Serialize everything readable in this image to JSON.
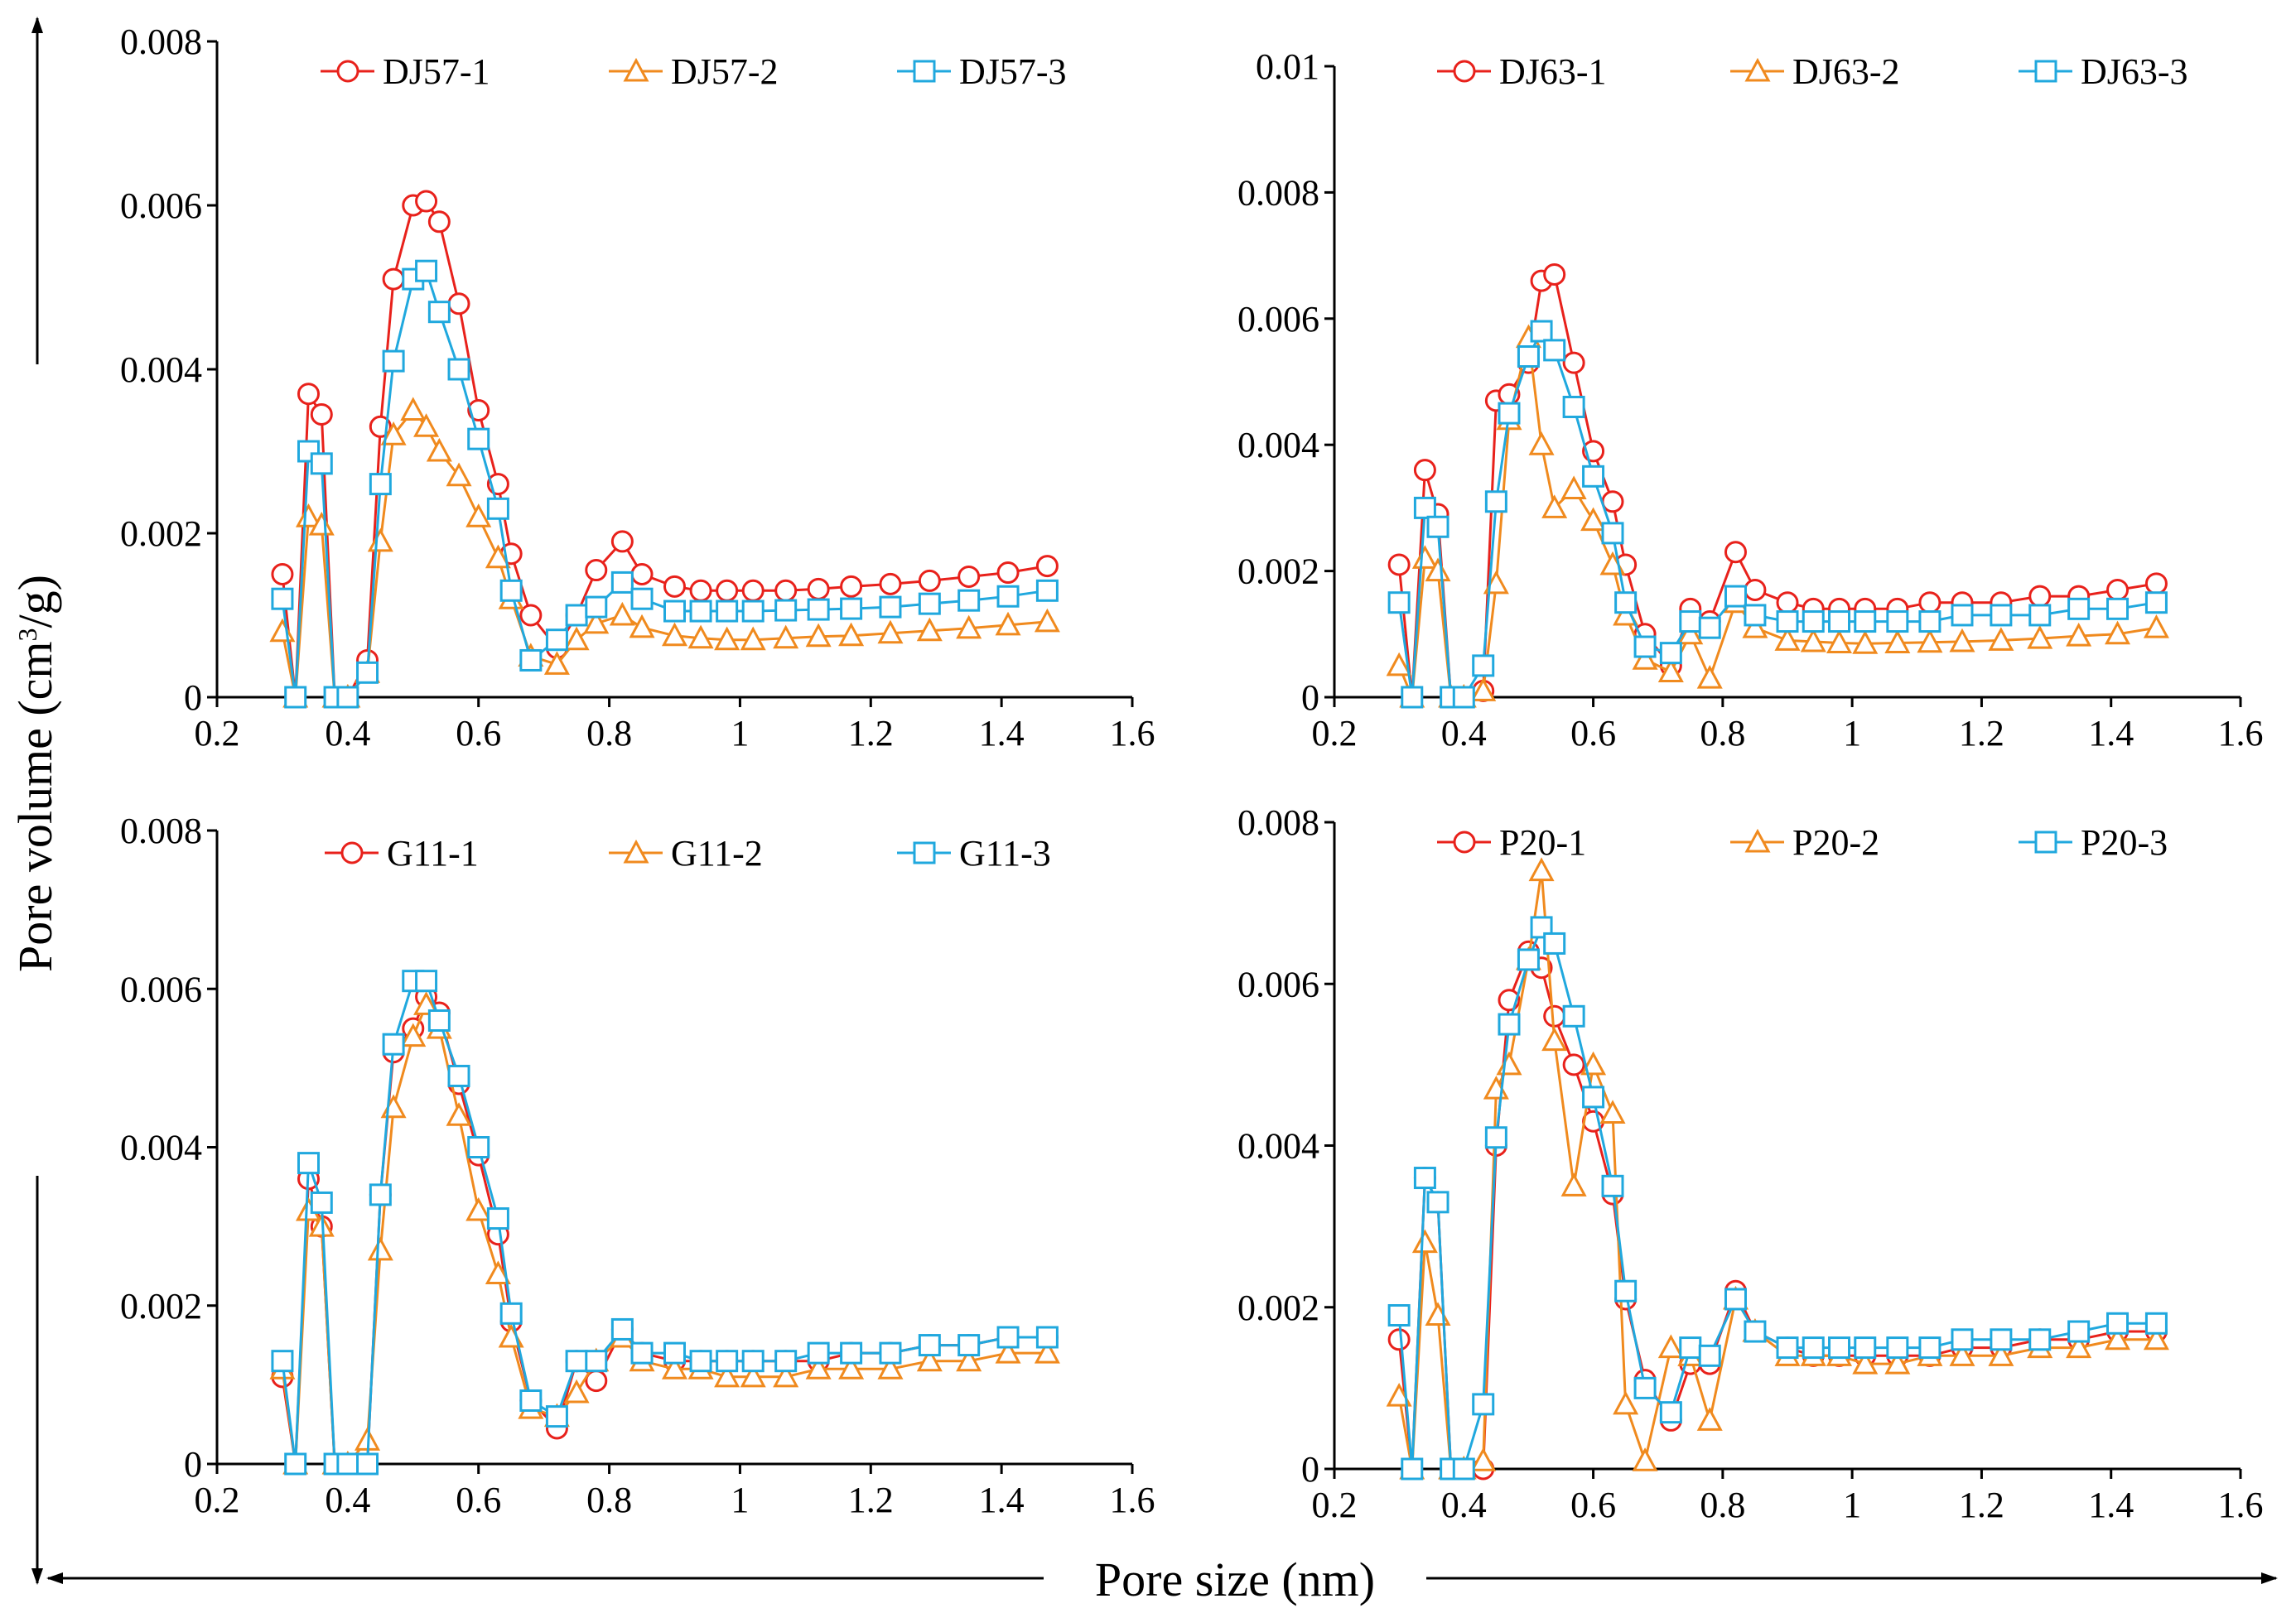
{
  "figure": {
    "ylabel_main": "Pore volume (cm",
    "ylabel_sup": "3",
    "ylabel_tail": "/g)",
    "xlabel": "Pore size (nm)"
  },
  "colors": {
    "s1": "#E8211B",
    "s2": "#F08A1E",
    "s3": "#20A8DE"
  },
  "chart_data": [
    {
      "type": "line",
      "ylim": [
        0,
        0.008
      ],
      "yticks": [
        "0",
        "0.002",
        "0.004",
        "0.006",
        "0.008"
      ],
      "xlim": [
        0.2,
        1.6
      ],
      "xticks": [
        "0.2",
        "0.4",
        "0.6",
        "0.8",
        "1",
        "1.2",
        "1.4",
        "1.6"
      ],
      "x": [
        0.3,
        0.32,
        0.34,
        0.36,
        0.38,
        0.4,
        0.43,
        0.45,
        0.47,
        0.5,
        0.52,
        0.54,
        0.57,
        0.6,
        0.63,
        0.65,
        0.68,
        0.72,
        0.75,
        0.78,
        0.82,
        0.85,
        0.9,
        0.94,
        0.98,
        1.02,
        1.07,
        1.12,
        1.17,
        1.23,
        1.29,
        1.35,
        1.41,
        1.47
      ],
      "series": [
        {
          "name": "DJ57-1",
          "marker": "circle",
          "values": [
            0.0015,
            0,
            0.0037,
            0.00345,
            0,
            0,
            0.00045,
            0.0033,
            0.0051,
            0.006,
            0.00605,
            0.0058,
            0.0048,
            0.0035,
            0.0026,
            0.00175,
            0.001,
            0.0006,
            0.001,
            0.00155,
            0.0019,
            0.0015,
            0.00135,
            0.0013,
            0.0013,
            0.0013,
            0.0013,
            0.00132,
            0.00135,
            0.00138,
            0.00142,
            0.00147,
            0.00152,
            0.0016
          ]
        },
        {
          "name": "DJ57-2",
          "marker": "triangle",
          "values": [
            0.0008,
            0,
            0.0022,
            0.0021,
            0,
            0,
            0.0003,
            0.0019,
            0.0032,
            0.0035,
            0.0033,
            0.003,
            0.0027,
            0.0022,
            0.0017,
            0.0012,
            0.0005,
            0.0004,
            0.0007,
            0.0009,
            0.001,
            0.00085,
            0.00075,
            0.00072,
            0.0007,
            0.0007,
            0.00072,
            0.00074,
            0.00075,
            0.00078,
            0.00081,
            0.00084,
            0.00088,
            0.00092
          ]
        },
        {
          "name": "DJ57-3",
          "marker": "square",
          "values": [
            0.0012,
            0,
            0.003,
            0.00285,
            0,
            0,
            0.0003,
            0.0026,
            0.0041,
            0.0051,
            0.0052,
            0.0047,
            0.004,
            0.00315,
            0.0023,
            0.0013,
            0.00045,
            0.0007,
            0.001,
            0.0011,
            0.0014,
            0.0012,
            0.00105,
            0.00105,
            0.00105,
            0.00105,
            0.00106,
            0.00107,
            0.00108,
            0.0011,
            0.00114,
            0.00118,
            0.00123,
            0.0013
          ]
        }
      ]
    },
    {
      "type": "line",
      "ylim": [
        0,
        0.01
      ],
      "yticks": [
        "0",
        "0.002",
        "0.004",
        "0.006",
        "0.008",
        "0.01"
      ],
      "xlim": [
        0.2,
        1.6
      ],
      "xticks": [
        "0.2",
        "0.4",
        "0.6",
        "0.8",
        "1",
        "1.2",
        "1.4",
        "1.6"
      ],
      "x": [
        0.3,
        0.32,
        0.34,
        0.36,
        0.38,
        0.4,
        0.43,
        0.45,
        0.47,
        0.5,
        0.52,
        0.54,
        0.57,
        0.6,
        0.63,
        0.65,
        0.68,
        0.72,
        0.75,
        0.78,
        0.82,
        0.85,
        0.9,
        0.94,
        0.98,
        1.02,
        1.07,
        1.12,
        1.17,
        1.23,
        1.29,
        1.35,
        1.41,
        1.47
      ],
      "series": [
        {
          "name": "DJ63-1",
          "marker": "circle",
          "values": [
            0.0021,
            0,
            0.0036,
            0.0029,
            0,
            0,
            0.0001,
            0.0047,
            0.0048,
            0.0053,
            0.0066,
            0.0067,
            0.0053,
            0.0039,
            0.0031,
            0.0021,
            0.001,
            0.0005,
            0.0014,
            0.0012,
            0.0023,
            0.0017,
            0.0015,
            0.0014,
            0.0014,
            0.0014,
            0.0014,
            0.0015,
            0.0015,
            0.0015,
            0.0016,
            0.0016,
            0.0017,
            0.0018
          ]
        },
        {
          "name": "DJ63-2",
          "marker": "triangle",
          "values": [
            0.0005,
            0,
            0.0022,
            0.002,
            0,
            0,
            0.0001,
            0.0018,
            0.0044,
            0.0057,
            0.004,
            0.003,
            0.0033,
            0.0028,
            0.0021,
            0.0013,
            0.0006,
            0.0004,
            0.001,
            0.0003,
            0.0015,
            0.0011,
            0.0009,
            0.00088,
            0.00086,
            0.00085,
            0.00086,
            0.00087,
            0.00088,
            0.0009,
            0.00093,
            0.00097,
            0.001,
            0.0011
          ]
        },
        {
          "name": "DJ63-3",
          "marker": "square",
          "values": [
            0.0015,
            0,
            0.003,
            0.0027,
            0,
            0,
            0.0005,
            0.0031,
            0.0045,
            0.0054,
            0.0058,
            0.0055,
            0.0046,
            0.0035,
            0.0026,
            0.0015,
            0.0008,
            0.0007,
            0.0012,
            0.0011,
            0.0016,
            0.0013,
            0.0012,
            0.0012,
            0.0012,
            0.0012,
            0.0012,
            0.0012,
            0.0013,
            0.0013,
            0.0013,
            0.0014,
            0.0014,
            0.0015
          ]
        }
      ]
    },
    {
      "type": "line",
      "ylim": [
        0,
        0.008
      ],
      "yticks": [
        "0",
        "0.002",
        "0.004",
        "0.006",
        "0.008"
      ],
      "xlim": [
        0.2,
        1.6
      ],
      "xticks": [
        "0.2",
        "0.4",
        "0.6",
        "0.8",
        "1",
        "1.2",
        "1.4",
        "1.6"
      ],
      "x": [
        0.3,
        0.32,
        0.34,
        0.36,
        0.38,
        0.4,
        0.43,
        0.45,
        0.47,
        0.5,
        0.52,
        0.54,
        0.57,
        0.6,
        0.63,
        0.65,
        0.68,
        0.72,
        0.75,
        0.78,
        0.82,
        0.85,
        0.9,
        0.94,
        0.98,
        1.02,
        1.07,
        1.12,
        1.17,
        1.23,
        1.29,
        1.35,
        1.41,
        1.47
      ],
      "series": [
        {
          "name": "G11-1",
          "marker": "circle",
          "values": [
            0.0011,
            0,
            0.0036,
            0.003,
            0,
            0,
            0,
            0.0034,
            0.0052,
            0.0055,
            0.0059,
            0.0057,
            0.0048,
            0.0039,
            0.0029,
            0.0018,
            0.0008,
            0.00045,
            0.0013,
            0.00105,
            0.0017,
            0.0014,
            0.0013,
            0.0013,
            0.0013,
            0.0013,
            0.0013,
            0.0013,
            0.0014,
            0.0014,
            0.0015,
            0.0015,
            0.0016,
            0.0016
          ]
        },
        {
          "name": "G11-2",
          "marker": "triangle",
          "values": [
            0.0012,
            0,
            0.0032,
            0.003,
            0,
            0,
            0.0003,
            0.0027,
            0.0045,
            0.0054,
            0.0058,
            0.0055,
            0.0044,
            0.0032,
            0.0024,
            0.0016,
            0.0007,
            0.0006,
            0.0009,
            0.0013,
            0.0016,
            0.0013,
            0.0012,
            0.0012,
            0.0011,
            0.0011,
            0.0011,
            0.0012,
            0.0012,
            0.0012,
            0.0013,
            0.0013,
            0.0014,
            0.0014
          ]
        },
        {
          "name": "G11-3",
          "marker": "square",
          "values": [
            0.0013,
            0,
            0.0038,
            0.0033,
            0,
            0,
            0,
            0.0034,
            0.0053,
            0.0061,
            0.0061,
            0.0056,
            0.0049,
            0.004,
            0.0031,
            0.0019,
            0.0008,
            0.0006,
            0.0013,
            0.0013,
            0.0017,
            0.0014,
            0.0014,
            0.0013,
            0.0013,
            0.0013,
            0.0013,
            0.0014,
            0.0014,
            0.0014,
            0.0015,
            0.0015,
            0.0016,
            0.0016
          ]
        }
      ]
    },
    {
      "type": "line",
      "ylim": [
        0,
        0.008
      ],
      "yticks": [
        "0",
        "0.002",
        "0.004",
        "0.006",
        "0.008"
      ],
      "xlim": [
        0.2,
        1.6
      ],
      "xticks": [
        "0.2",
        "0.4",
        "0.6",
        "0.8",
        "1",
        "1.2",
        "1.4",
        "1.6"
      ],
      "x": [
        0.3,
        0.32,
        0.34,
        0.36,
        0.38,
        0.4,
        0.43,
        0.45,
        0.47,
        0.5,
        0.52,
        0.54,
        0.57,
        0.6,
        0.63,
        0.65,
        0.68,
        0.72,
        0.75,
        0.78,
        0.82,
        0.85,
        0.9,
        0.94,
        0.98,
        1.02,
        1.07,
        1.12,
        1.17,
        1.23,
        1.29,
        1.35,
        1.41,
        1.47
      ],
      "series": [
        {
          "name": "P20-1",
          "marker": "circle",
          "values": [
            0.0016,
            0,
            0.0036,
            0.0033,
            0,
            0,
            0,
            0.004,
            0.0058,
            0.0064,
            0.0062,
            0.0056,
            0.005,
            0.0043,
            0.0034,
            0.0021,
            0.0011,
            0.0006,
            0.0013,
            0.0013,
            0.0022,
            0.0017,
            0.0015,
            0.0014,
            0.0014,
            0.0014,
            0.0014,
            0.0014,
            0.0015,
            0.0015,
            0.0016,
            0.0016,
            0.0017,
            0.0017
          ]
        },
        {
          "name": "P20-2",
          "marker": "triangle",
          "values": [
            0.0009,
            0,
            0.0028,
            0.0019,
            0,
            0,
            0.0001,
            0.0047,
            0.005,
            0.0063,
            0.0074,
            0.0053,
            0.0035,
            0.005,
            0.0044,
            0.0008,
            0.0001,
            0.0015,
            0.0014,
            0.0006,
            0.0021,
            0.0017,
            0.0014,
            0.0014,
            0.0014,
            0.0013,
            0.0013,
            0.0014,
            0.0014,
            0.0014,
            0.0015,
            0.0015,
            0.0016,
            0.0016
          ]
        },
        {
          "name": "P20-3",
          "marker": "square",
          "values": [
            0.0019,
            0,
            0.0036,
            0.0033,
            0,
            0,
            0.0008,
            0.0041,
            0.0055,
            0.0063,
            0.0067,
            0.0065,
            0.0056,
            0.0046,
            0.0035,
            0.0022,
            0.001,
            0.0007,
            0.0015,
            0.0014,
            0.0021,
            0.0017,
            0.0015,
            0.0015,
            0.0015,
            0.0015,
            0.0015,
            0.0015,
            0.0016,
            0.0016,
            0.0016,
            0.0017,
            0.0018,
            0.0018
          ]
        }
      ]
    }
  ]
}
